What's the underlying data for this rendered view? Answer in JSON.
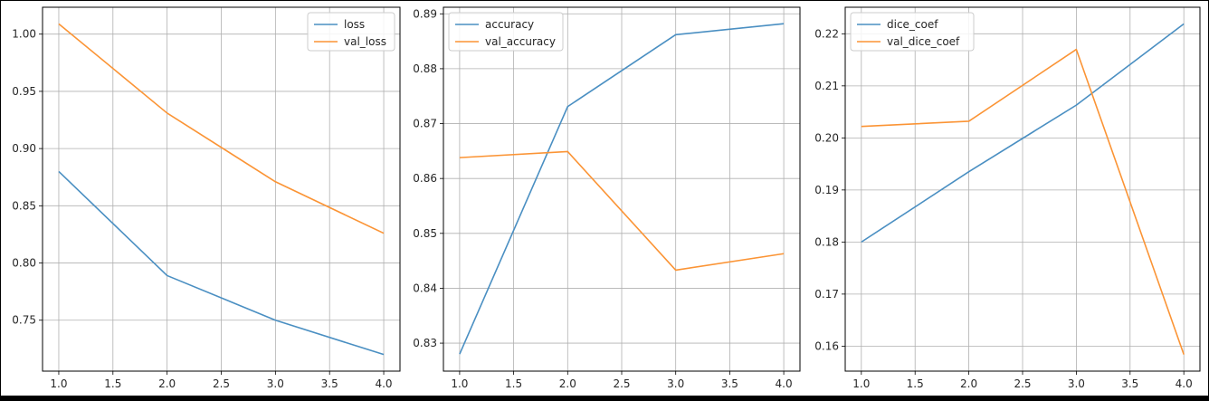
{
  "colors": {
    "series1": "#4a8fc2",
    "series2": "#fb9435",
    "grid": "#b0b0b0",
    "axis": "#000000",
    "background": "#ffffff",
    "frame": "#000000"
  },
  "chart_data": [
    {
      "type": "line",
      "title": "",
      "xlabel": "",
      "ylabel": "",
      "x": [
        1.0,
        2.0,
        3.0,
        4.0
      ],
      "series": [
        {
          "name": "loss",
          "values": [
            0.88,
            0.789,
            0.75,
            0.72
          ]
        },
        {
          "name": "val_loss",
          "values": [
            1.009,
            0.931,
            0.871,
            0.826
          ]
        }
      ],
      "xlim": [
        0.85,
        4.15
      ],
      "ylim": [
        0.7055,
        1.0235
      ],
      "xticks": [
        1.0,
        1.5,
        2.0,
        2.5,
        3.0,
        3.5,
        4.0
      ],
      "xtick_labels": [
        "1.0",
        "1.5",
        "2.0",
        "2.5",
        "3.0",
        "3.5",
        "4.0"
      ],
      "yticks": [
        0.75,
        0.8,
        0.85,
        0.9,
        0.95,
        1.0
      ],
      "ytick_labels": [
        "0.75",
        "0.80",
        "0.85",
        "0.90",
        "0.95",
        "1.00"
      ],
      "grid": true,
      "legend": "upper-right"
    },
    {
      "type": "line",
      "title": "",
      "xlabel": "",
      "ylabel": "",
      "x": [
        1.0,
        2.0,
        3.0,
        4.0
      ],
      "series": [
        {
          "name": "accuracy",
          "values": [
            0.828,
            0.8731,
            0.8862,
            0.8882
          ]
        },
        {
          "name": "val_accuracy",
          "values": [
            0.8638,
            0.8649,
            0.8433,
            0.8463
          ]
        }
      ],
      "xlim": [
        0.85,
        4.15
      ],
      "ylim": [
        0.8249,
        0.8912
      ],
      "xticks": [
        1.0,
        1.5,
        2.0,
        2.5,
        3.0,
        3.5,
        4.0
      ],
      "xtick_labels": [
        "1.0",
        "1.5",
        "2.0",
        "2.5",
        "3.0",
        "3.5",
        "4.0"
      ],
      "yticks": [
        0.83,
        0.84,
        0.85,
        0.86,
        0.87,
        0.88,
        0.89
      ],
      "ytick_labels": [
        "0.83",
        "0.84",
        "0.85",
        "0.86",
        "0.87",
        "0.88",
        "0.89"
      ],
      "grid": true,
      "legend": "upper-left"
    },
    {
      "type": "line",
      "title": "",
      "xlabel": "",
      "ylabel": "",
      "x": [
        1.0,
        2.0,
        3.0,
        4.0
      ],
      "series": [
        {
          "name": "dice_coef",
          "values": [
            0.18,
            0.1935,
            0.2063,
            0.2219
          ]
        },
        {
          "name": "val_dice_coef",
          "values": [
            0.2022,
            0.2032,
            0.217,
            0.1584
          ]
        }
      ],
      "xlim": [
        0.85,
        4.15
      ],
      "ylim": [
        0.1552,
        0.2251
      ],
      "xticks": [
        1.0,
        1.5,
        2.0,
        2.5,
        3.0,
        3.5,
        4.0
      ],
      "xtick_labels": [
        "1.0",
        "1.5",
        "2.0",
        "2.5",
        "3.0",
        "3.5",
        "4.0"
      ],
      "yticks": [
        0.16,
        0.17,
        0.18,
        0.19,
        0.2,
        0.21,
        0.22
      ],
      "ytick_labels": [
        "0.16",
        "0.17",
        "0.18",
        "0.19",
        "0.20",
        "0.21",
        "0.22"
      ],
      "grid": true,
      "legend": "upper-left"
    }
  ]
}
